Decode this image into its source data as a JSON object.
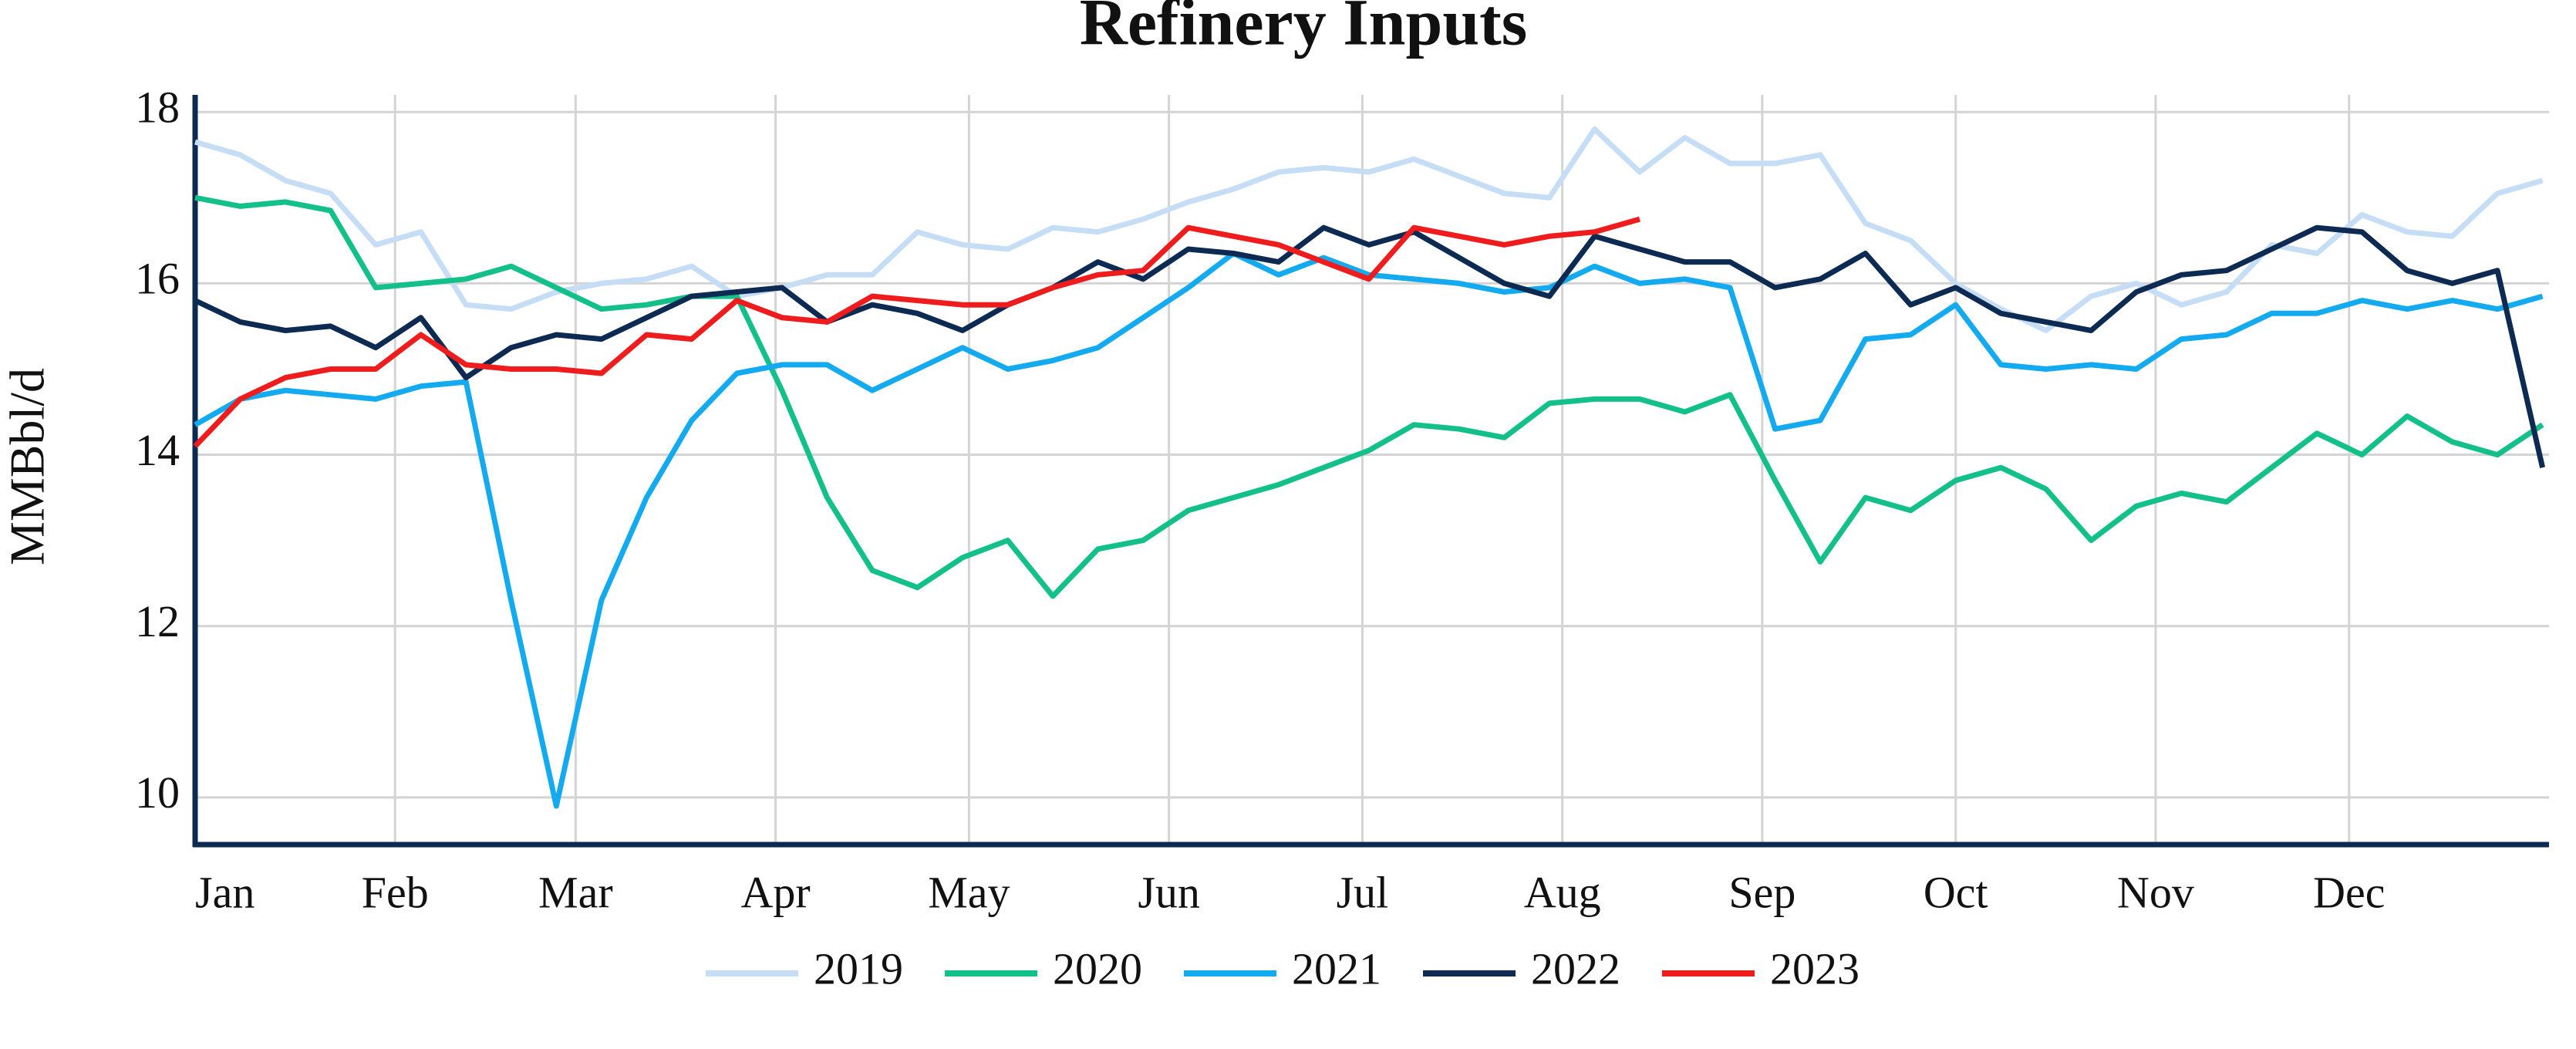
{
  "chart_data": {
    "type": "line",
    "title": "Refinery Inputs",
    "y_label": "MMBbl/d",
    "x": [
      0,
      7,
      14,
      21,
      28,
      35,
      42,
      49,
      56,
      63,
      70,
      77,
      84,
      91,
      98,
      105,
      112,
      119,
      126,
      133,
      140,
      147,
      154,
      161,
      168,
      175,
      182,
      189,
      196,
      203,
      210,
      217,
      224,
      231,
      238,
      245,
      252,
      259,
      266,
      273,
      280,
      287,
      294,
      301,
      308,
      315,
      322,
      329,
      336,
      343,
      350,
      357,
      364
    ],
    "xlim": [
      0,
      365
    ],
    "xticks": [
      {
        "value": 0,
        "label": "Jan"
      },
      {
        "value": 31,
        "label": "Feb"
      },
      {
        "value": 59,
        "label": "Mar"
      },
      {
        "value": 90,
        "label": "Apr"
      },
      {
        "value": 120,
        "label": "May"
      },
      {
        "value": 151,
        "label": "Jun"
      },
      {
        "value": 181,
        "label": "Jul"
      },
      {
        "value": 212,
        "label": "Aug"
      },
      {
        "value": 243,
        "label": "Sep"
      },
      {
        "value": 273,
        "label": "Oct"
      },
      {
        "value": 304,
        "label": "Nov"
      },
      {
        "value": 334,
        "label": "Dec"
      }
    ],
    "ylim": [
      9.45,
      18.2
    ],
    "yticks": [
      10,
      12,
      14,
      16,
      18
    ],
    "grid": true,
    "legend": "bottom",
    "series": [
      {
        "name": "2019",
        "color": "#c5ddf5",
        "values": [
          17.65,
          17.5,
          17.2,
          17.05,
          16.45,
          16.6,
          15.75,
          15.7,
          15.9,
          16.0,
          16.05,
          16.2,
          15.85,
          15.95,
          16.1,
          16.1,
          16.6,
          16.45,
          16.4,
          16.65,
          16.6,
          16.75,
          16.95,
          17.1,
          17.3,
          17.35,
          17.3,
          17.45,
          17.25,
          17.05,
          17.0,
          17.8,
          17.3,
          17.7,
          17.4,
          17.4,
          17.5,
          16.7,
          16.5,
          16.0,
          15.7,
          15.45,
          15.85,
          16.0,
          15.75,
          15.9,
          16.45,
          16.35,
          16.8,
          16.6,
          16.55,
          17.05,
          17.2
        ]
      },
      {
        "name": "2020",
        "color": "#14c08a",
        "values": [
          17.0,
          16.9,
          16.95,
          16.85,
          15.95,
          16.0,
          16.05,
          16.2,
          15.95,
          15.7,
          15.75,
          15.85,
          15.85,
          14.75,
          13.5,
          12.65,
          12.45,
          12.8,
          13.0,
          12.35,
          12.9,
          13.0,
          13.35,
          13.5,
          13.65,
          13.85,
          14.05,
          14.35,
          14.3,
          14.2,
          14.6,
          14.65,
          14.65,
          14.5,
          14.7,
          13.7,
          12.75,
          13.5,
          13.35,
          13.7,
          13.85,
          13.6,
          13.0,
          13.4,
          13.55,
          13.45,
          13.85,
          14.25,
          14.0,
          14.45,
          14.15,
          14.0,
          14.35
        ]
      },
      {
        "name": "2021",
        "color": "#14aaf0",
        "values": [
          14.35,
          14.65,
          14.75,
          14.7,
          14.65,
          14.8,
          14.85,
          12.3,
          9.9,
          12.3,
          13.5,
          14.4,
          14.95,
          15.05,
          15.05,
          14.75,
          15.0,
          15.25,
          15.0,
          15.1,
          15.25,
          15.6,
          15.95,
          16.35,
          16.1,
          16.3,
          16.1,
          16.05,
          16.0,
          15.9,
          15.95,
          16.2,
          16.0,
          16.05,
          15.95,
          14.3,
          14.4,
          15.35,
          15.4,
          15.75,
          15.05,
          15.0,
          15.05,
          15.0,
          15.35,
          15.4,
          15.65,
          15.65,
          15.8,
          15.7,
          15.8,
          15.7,
          15.85
        ]
      },
      {
        "name": "2022",
        "color": "#0d2a52",
        "values": [
          15.8,
          15.55,
          15.45,
          15.5,
          15.25,
          15.6,
          14.9,
          15.25,
          15.4,
          15.35,
          15.6,
          15.85,
          15.9,
          15.95,
          15.55,
          15.75,
          15.65,
          15.45,
          15.75,
          15.95,
          16.25,
          16.05,
          16.4,
          16.35,
          16.25,
          16.65,
          16.45,
          16.6,
          16.3,
          16.0,
          15.85,
          16.55,
          16.4,
          16.25,
          16.25,
          15.95,
          16.05,
          16.35,
          15.75,
          15.95,
          15.65,
          15.55,
          15.45,
          15.9,
          16.1,
          16.15,
          16.4,
          16.65,
          16.6,
          16.15,
          16.0,
          16.15,
          13.85
        ]
      },
      {
        "name": "2023",
        "color": "#ee1c1c",
        "values": [
          14.1,
          14.65,
          14.9,
          15.0,
          15.0,
          15.4,
          15.05,
          15.0,
          15.0,
          14.95,
          15.4,
          15.35,
          15.8,
          15.6,
          15.55,
          15.85,
          15.8,
          15.75,
          15.75,
          15.95,
          16.1,
          16.15,
          16.65,
          16.55,
          16.45,
          16.25,
          16.05,
          16.65,
          16.55,
          16.45,
          16.55,
          16.6,
          16.75,
          null,
          null,
          null,
          null,
          null,
          null,
          null,
          null,
          null,
          null,
          null,
          null,
          null,
          null,
          null,
          null,
          null,
          null,
          null,
          null
        ]
      }
    ]
  }
}
